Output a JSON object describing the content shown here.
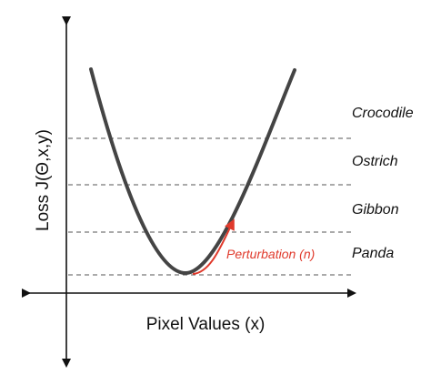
{
  "axes": {
    "y_label": "Loss J(Θ,x,y)",
    "x_label": "Pixel Values (x)"
  },
  "classes": [
    {
      "name": "Crocodile"
    },
    {
      "name": "Ostrich"
    },
    {
      "name": "Gibbon"
    },
    {
      "name": "Panda"
    }
  ],
  "perturbation": {
    "label": "Perturbation (n)"
  },
  "colors": {
    "axis": "#111111",
    "curve": "#444444",
    "threshold": "#555555",
    "perturbation": "#e03a2c"
  }
}
